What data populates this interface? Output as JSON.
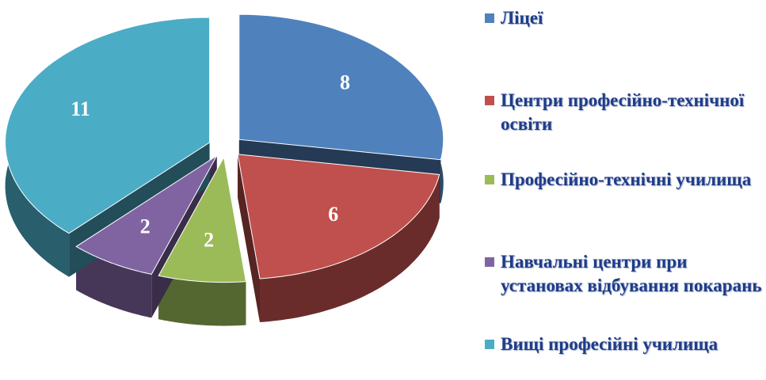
{
  "chart_data": {
    "type": "pie",
    "categories": [
      "Ліцеї",
      "Центри професійно-технічної освіти",
      "Професійно-технічні училища",
      "Навчальні центри при установах відбування покарань",
      "Вищі професійні училища"
    ],
    "values": [
      8,
      6,
      2,
      2,
      11
    ],
    "colors": [
      "#4f81bd",
      "#c0504d",
      "#9bbb59",
      "#8064a2",
      "#4bacc6"
    ],
    "legend": "right"
  }
}
